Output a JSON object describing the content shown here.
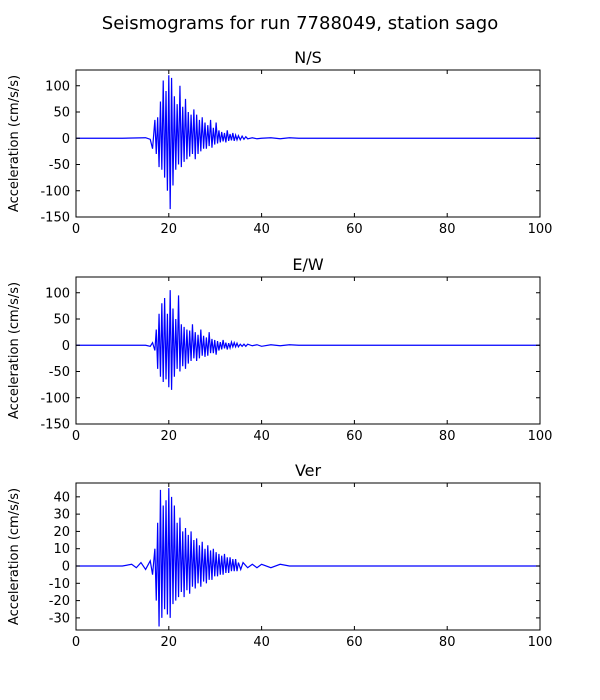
{
  "chart_data": {
    "type": "line",
    "title": "Seismograms for run 7788049, station sago",
    "panels": [
      {
        "title": "N/S",
        "ylabel": "Acceleration (cm/s/s)",
        "xlim": [
          0,
          100
        ],
        "ylim": [
          -150,
          130
        ],
        "xticks": [
          0,
          20,
          40,
          60,
          80,
          100
        ],
        "yticks": [
          -150,
          -100,
          -50,
          0,
          50,
          100
        ],
        "color": "#0000ff",
        "series": [
          {
            "x": [
              0,
              10,
              15,
              16,
              16.5,
              17,
              17.3,
              17.6,
              17.9,
              18.2,
              18.5,
              18.8,
              19.1,
              19.4,
              19.7,
              20,
              20.3,
              20.6,
              20.9,
              21.2,
              21.5,
              21.8,
              22.1,
              22.4,
              22.7,
              23,
              23.3,
              23.6,
              23.9,
              24.2,
              24.5,
              24.8,
              25.1,
              25.4,
              25.7,
              26,
              26.3,
              26.6,
              26.9,
              27.2,
              27.5,
              27.8,
              28.1,
              28.4,
              28.7,
              29,
              29.3,
              29.6,
              29.9,
              30.2,
              30.5,
              30.8,
              31.1,
              31.4,
              31.7,
              32,
              32.3,
              32.6,
              32.9,
              33.2,
              33.5,
              33.8,
              34.1,
              34.4,
              34.7,
              35,
              35.4,
              35.8,
              36.2,
              36.6,
              37,
              38,
              39,
              40,
              42,
              44,
              46,
              48,
              50,
              55,
              60,
              70,
              80,
              90,
              100
            ],
            "y": [
              0,
              0,
              1,
              -2,
              -20,
              35,
              -30,
              40,
              -55,
              70,
              -60,
              110,
              -75,
              90,
              -100,
              120,
              -135,
              115,
              -90,
              80,
              -60,
              65,
              -50,
              100,
              -55,
              60,
              -45,
              75,
              -40,
              50,
              -35,
              45,
              -30,
              55,
              -40,
              45,
              -30,
              35,
              -25,
              40,
              -20,
              30,
              -20,
              25,
              -15,
              35,
              -18,
              20,
              -12,
              30,
              -10,
              15,
              -8,
              12,
              -6,
              10,
              -8,
              15,
              -5,
              8,
              -4,
              10,
              -5,
              6,
              -3,
              5,
              -3,
              4,
              -2,
              3,
              -1,
              1,
              -1,
              0,
              1,
              -1,
              1,
              0,
              0,
              0,
              0,
              0,
              0,
              0,
              0
            ]
          }
        ]
      },
      {
        "title": "E/W",
        "ylabel": "Acceleration (cm/s/s)",
        "xlim": [
          0,
          100
        ],
        "ylim": [
          -150,
          130
        ],
        "xticks": [
          0,
          20,
          40,
          60,
          80,
          100
        ],
        "yticks": [
          -150,
          -100,
          -50,
          0,
          50,
          100
        ],
        "color": "#0000ff",
        "series": [
          {
            "x": [
              0,
              10,
              15,
              16,
              16.5,
              17,
              17.3,
              17.6,
              17.9,
              18.2,
              18.5,
              18.8,
              19.1,
              19.4,
              19.7,
              20,
              20.3,
              20.6,
              20.9,
              21.2,
              21.5,
              21.8,
              22.1,
              22.4,
              22.7,
              23,
              23.3,
              23.6,
              23.9,
              24.2,
              24.5,
              24.8,
              25.1,
              25.4,
              25.7,
              26,
              26.3,
              26.6,
              26.9,
              27.2,
              27.5,
              27.8,
              28.1,
              28.4,
              28.7,
              29,
              29.3,
              29.6,
              29.9,
              30.2,
              30.5,
              30.8,
              31.1,
              31.4,
              31.7,
              32,
              32.3,
              32.6,
              32.9,
              33.2,
              33.5,
              33.8,
              34.1,
              34.4,
              34.7,
              35,
              35.4,
              35.8,
              36.2,
              36.6,
              37,
              38,
              39,
              40,
              42,
              44,
              46,
              48,
              50,
              55,
              60,
              70,
              80,
              90,
              100
            ],
            "y": [
              0,
              0,
              0,
              -2,
              5,
              -10,
              30,
              -45,
              60,
              -60,
              80,
              -70,
              90,
              -65,
              60,
              -80,
              105,
              -85,
              70,
              -60,
              50,
              -45,
              95,
              -50,
              40,
              -40,
              35,
              -45,
              30,
              -35,
              28,
              -30,
              40,
              -25,
              25,
              -30,
              20,
              -25,
              30,
              -20,
              18,
              -22,
              15,
              -20,
              25,
              -15,
              12,
              -15,
              10,
              -18,
              8,
              -10,
              6,
              -8,
              10,
              -6,
              5,
              -8,
              4,
              -5,
              6,
              -3,
              5,
              -3,
              4,
              -3,
              2,
              -2,
              2,
              -2,
              2,
              -1,
              1,
              -2,
              1,
              -1,
              1,
              0,
              0,
              0,
              0,
              0,
              0,
              0,
              0
            ]
          }
        ]
      },
      {
        "title": "Ver",
        "ylabel": "Acceleration (cm/s/s)",
        "xlim": [
          0,
          100
        ],
        "ylim": [
          -37,
          48
        ],
        "xticks": [
          0,
          20,
          40,
          60,
          80,
          100
        ],
        "yticks": [
          -30,
          -20,
          -10,
          0,
          10,
          20,
          30,
          40
        ],
        "color": "#0000ff",
        "series": [
          {
            "x": [
              0,
              10,
              12,
              13,
              14,
              15,
              16,
              16.5,
              17,
              17.3,
              17.6,
              17.9,
              18.2,
              18.5,
              18.8,
              19.1,
              19.4,
              19.7,
              20,
              20.3,
              20.6,
              20.9,
              21.2,
              21.5,
              21.8,
              22.1,
              22.4,
              22.7,
              23,
              23.3,
              23.6,
              23.9,
              24.2,
              24.5,
              24.8,
              25.1,
              25.4,
              25.7,
              26,
              26.3,
              26.6,
              26.9,
              27.2,
              27.5,
              27.8,
              28.1,
              28.4,
              28.7,
              29,
              29.3,
              29.6,
              29.9,
              30.2,
              30.5,
              30.8,
              31.1,
              31.4,
              31.7,
              32,
              32.3,
              32.6,
              32.9,
              33.2,
              33.5,
              33.8,
              34.1,
              34.4,
              34.7,
              35,
              35.5,
              36,
              37,
              38,
              39,
              40,
              42,
              44,
              46,
              48,
              50,
              55,
              60,
              70,
              80,
              90,
              100
            ],
            "y": [
              0,
              0,
              1,
              -1,
              2,
              -2,
              3,
              -5,
              10,
              -20,
              25,
              -35,
              44,
              -30,
              35,
              -25,
              38,
              -28,
              45,
              -30,
              40,
              -22,
              35,
              -20,
              25,
              -18,
              28,
              -15,
              20,
              -18,
              22,
              -14,
              18,
              -16,
              20,
              -12,
              15,
              -13,
              16,
              -10,
              12,
              -12,
              14,
              -9,
              10,
              -10,
              12,
              -8,
              9,
              -8,
              10,
              -6,
              8,
              -6,
              7,
              -5,
              6,
              -5,
              7,
              -4,
              5,
              -4,
              5,
              -3,
              4,
              -3,
              4,
              -3,
              2,
              -2,
              2,
              -1,
              1,
              -1,
              1,
              -1,
              1,
              0,
              0,
              0,
              0,
              0,
              0,
              0,
              0,
              0
            ]
          }
        ]
      }
    ]
  }
}
